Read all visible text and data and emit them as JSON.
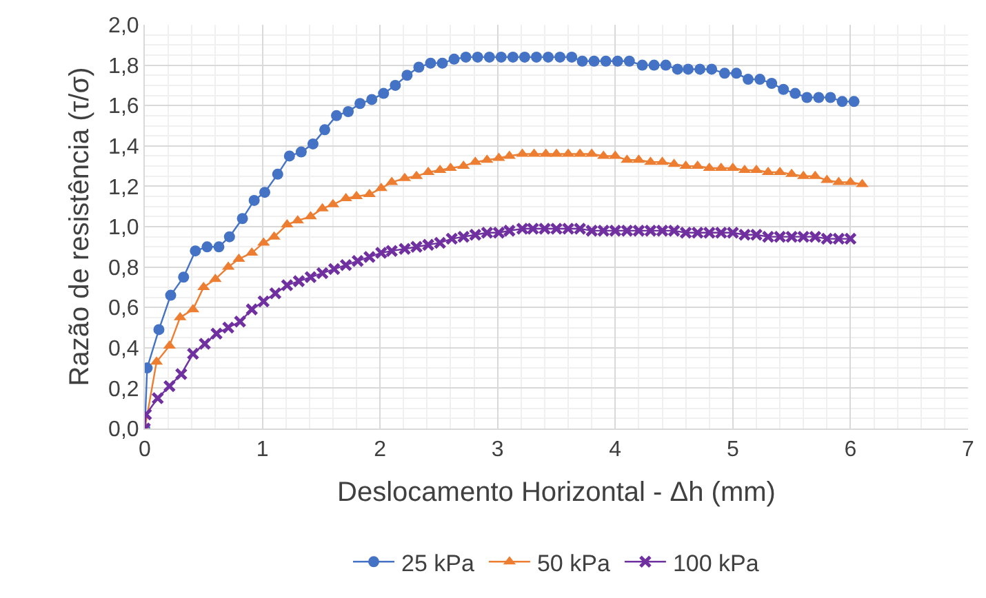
{
  "chart_data": {
    "type": "line",
    "xlabel": "Deslocamento Horizontal - Δh (mm)",
    "ylabel": "Razão de resistência (τ/σ)",
    "xlim": [
      0,
      7
    ],
    "xticks": [
      0,
      1,
      2,
      3,
      4,
      5,
      6,
      7
    ],
    "ylim": [
      0,
      2
    ],
    "yticks": [
      {
        "value": 0,
        "label": "0,0"
      },
      {
        "value": 0.2,
        "label": "0,2"
      },
      {
        "value": 0.4,
        "label": "0,4"
      },
      {
        "value": 0.6,
        "label": "0,6"
      },
      {
        "value": 0.8,
        "label": "0,8"
      },
      {
        "value": 1.0,
        "label": "1,0"
      },
      {
        "value": 1.2,
        "label": "1,2"
      },
      {
        "value": 1.4,
        "label": "1,4"
      },
      {
        "value": 1.6,
        "label": "1,6"
      },
      {
        "value": 1.8,
        "label": "1,8"
      },
      {
        "value": 2.0,
        "label": "2,0"
      }
    ],
    "grid": true,
    "legend": "bottom",
    "line_style": "solid",
    "series": [
      {
        "name": "25 kPa",
        "color": "#4472c4",
        "marker": "circle",
        "x": [
          0,
          0.02,
          0.12,
          0.22,
          0.33,
          0.43,
          0.53,
          0.63,
          0.72,
          0.83,
          0.93,
          1.02,
          1.13,
          1.23,
          1.33,
          1.43,
          1.53,
          1.63,
          1.73,
          1.83,
          1.93,
          2.03,
          2.13,
          2.23,
          2.33,
          2.43,
          2.53,
          2.63,
          2.73,
          2.83,
          2.93,
          3.03,
          3.13,
          3.23,
          3.33,
          3.43,
          3.53,
          3.63,
          3.72,
          3.82,
          3.92,
          4.02,
          4.12,
          4.23,
          4.33,
          4.43,
          4.53,
          4.62,
          4.72,
          4.82,
          4.93,
          5.03,
          5.13,
          5.23,
          5.33,
          5.43,
          5.53,
          5.63,
          5.73,
          5.83,
          5.93,
          6.03
        ],
        "values": [
          0,
          0.3,
          0.49,
          0.66,
          0.75,
          0.88,
          0.9,
          0.9,
          0.95,
          1.04,
          1.13,
          1.17,
          1.26,
          1.35,
          1.37,
          1.41,
          1.48,
          1.55,
          1.57,
          1.61,
          1.63,
          1.66,
          1.7,
          1.75,
          1.79,
          1.81,
          1.81,
          1.83,
          1.84,
          1.84,
          1.84,
          1.84,
          1.84,
          1.84,
          1.84,
          1.84,
          1.84,
          1.84,
          1.82,
          1.82,
          1.82,
          1.82,
          1.82,
          1.8,
          1.8,
          1.8,
          1.78,
          1.78,
          1.78,
          1.78,
          1.76,
          1.76,
          1.73,
          1.73,
          1.71,
          1.68,
          1.66,
          1.64,
          1.64,
          1.64,
          1.62,
          1.62
        ]
      },
      {
        "name": "50 kPa",
        "color": "#ed7d31",
        "marker": "triangle",
        "x": [
          0,
          0.1,
          0.21,
          0.3,
          0.41,
          0.5,
          0.6,
          0.71,
          0.8,
          0.91,
          1.01,
          1.1,
          1.21,
          1.3,
          1.41,
          1.51,
          1.6,
          1.71,
          1.8,
          1.91,
          2.01,
          2.1,
          2.21,
          2.31,
          2.41,
          2.51,
          2.6,
          2.71,
          2.81,
          2.91,
          3.01,
          3.1,
          3.21,
          3.31,
          3.41,
          3.5,
          3.6,
          3.7,
          3.8,
          3.9,
          4.0,
          4.1,
          4.2,
          4.3,
          4.4,
          4.5,
          4.6,
          4.7,
          4.8,
          4.9,
          5.0,
          5.1,
          5.2,
          5.3,
          5.4,
          5.5,
          5.6,
          5.7,
          5.8,
          5.9,
          6.0,
          6.1
        ],
        "values": [
          0,
          0.33,
          0.41,
          0.55,
          0.59,
          0.7,
          0.74,
          0.8,
          0.84,
          0.87,
          0.92,
          0.95,
          1.01,
          1.03,
          1.05,
          1.09,
          1.11,
          1.14,
          1.15,
          1.16,
          1.19,
          1.22,
          1.24,
          1.25,
          1.27,
          1.28,
          1.29,
          1.3,
          1.32,
          1.33,
          1.34,
          1.35,
          1.36,
          1.36,
          1.36,
          1.36,
          1.36,
          1.36,
          1.36,
          1.35,
          1.35,
          1.33,
          1.33,
          1.32,
          1.32,
          1.31,
          1.3,
          1.3,
          1.29,
          1.29,
          1.29,
          1.28,
          1.28,
          1.27,
          1.27,
          1.26,
          1.25,
          1.25,
          1.23,
          1.22,
          1.22,
          1.21
        ]
      },
      {
        "name": "100 kPa",
        "color": "#7030a0",
        "marker": "cross",
        "x": [
          0,
          0.01,
          0.11,
          0.21,
          0.31,
          0.41,
          0.51,
          0.61,
          0.71,
          0.81,
          0.91,
          1.01,
          1.11,
          1.21,
          1.31,
          1.41,
          1.51,
          1.61,
          1.71,
          1.81,
          1.91,
          2.01,
          2.1,
          2.21,
          2.31,
          2.41,
          2.51,
          2.61,
          2.71,
          2.81,
          2.91,
          3.01,
          3.1,
          3.21,
          3.3,
          3.4,
          3.5,
          3.6,
          3.7,
          3.8,
          3.9,
          4.0,
          4.1,
          4.2,
          4.3,
          4.4,
          4.5,
          4.6,
          4.7,
          4.8,
          4.9,
          5.0,
          5.1,
          5.2,
          5.3,
          5.4,
          5.5,
          5.6,
          5.7,
          5.8,
          5.9,
          6.0
        ],
        "values": [
          0,
          0.07,
          0.15,
          0.21,
          0.27,
          0.37,
          0.42,
          0.47,
          0.5,
          0.53,
          0.59,
          0.63,
          0.67,
          0.71,
          0.73,
          0.75,
          0.77,
          0.79,
          0.81,
          0.83,
          0.85,
          0.87,
          0.88,
          0.89,
          0.9,
          0.91,
          0.92,
          0.94,
          0.95,
          0.96,
          0.97,
          0.97,
          0.98,
          0.99,
          0.99,
          0.99,
          0.99,
          0.99,
          0.99,
          0.98,
          0.98,
          0.98,
          0.98,
          0.98,
          0.98,
          0.98,
          0.98,
          0.97,
          0.97,
          0.97,
          0.97,
          0.97,
          0.96,
          0.96,
          0.95,
          0.95,
          0.95,
          0.95,
          0.95,
          0.94,
          0.94,
          0.94
        ]
      }
    ]
  }
}
